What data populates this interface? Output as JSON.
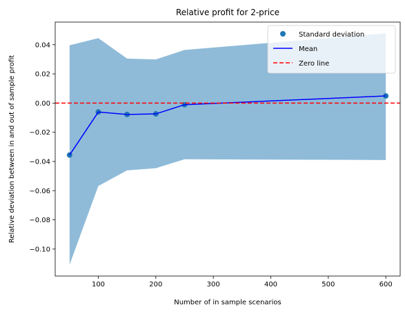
{
  "chart_data": {
    "type": "line",
    "title": "Relative profit for 2-price",
    "xlabel": "Number of in sample scenarios",
    "ylabel": "Relative deviation between in and out of sample profit",
    "xlim": [
      25,
      625
    ],
    "ylim": [
      -0.1185,
      0.0555
    ],
    "xticks": [
      100,
      200,
      300,
      400,
      500,
      600
    ],
    "yticks": [
      -0.1,
      -0.08,
      -0.06,
      -0.04,
      -0.02,
      0.0,
      0.02,
      0.04
    ],
    "ytick_labels": [
      "−0.10",
      "−0.08",
      "−0.06",
      "−0.04",
      "−0.02",
      "0.00",
      "0.02",
      "0.04"
    ],
    "x": [
      50,
      100,
      150,
      200,
      250,
      600
    ],
    "mean": [
      -0.0356,
      -0.0061,
      -0.0078,
      -0.0074,
      -0.0011,
      0.0049
    ],
    "band_upper": [
      0.0396,
      0.0445,
      0.0305,
      0.0299,
      0.0364,
      0.0478
    ],
    "band_lower": [
      -0.1107,
      -0.0568,
      -0.0461,
      -0.0446,
      -0.0385,
      -0.039
    ],
    "zero_line": 0.0,
    "colors": {
      "band": "#8fbbd9",
      "points": "#1f77b4",
      "mean_line": "#0000ff",
      "zero_line": "#ff0000"
    },
    "legend": {
      "placement": "top-right",
      "entries": [
        {
          "label": "Standard deviation",
          "kind": "marker"
        },
        {
          "label": "Mean",
          "kind": "line"
        },
        {
          "label": "Zero line",
          "kind": "dashed"
        }
      ]
    }
  }
}
